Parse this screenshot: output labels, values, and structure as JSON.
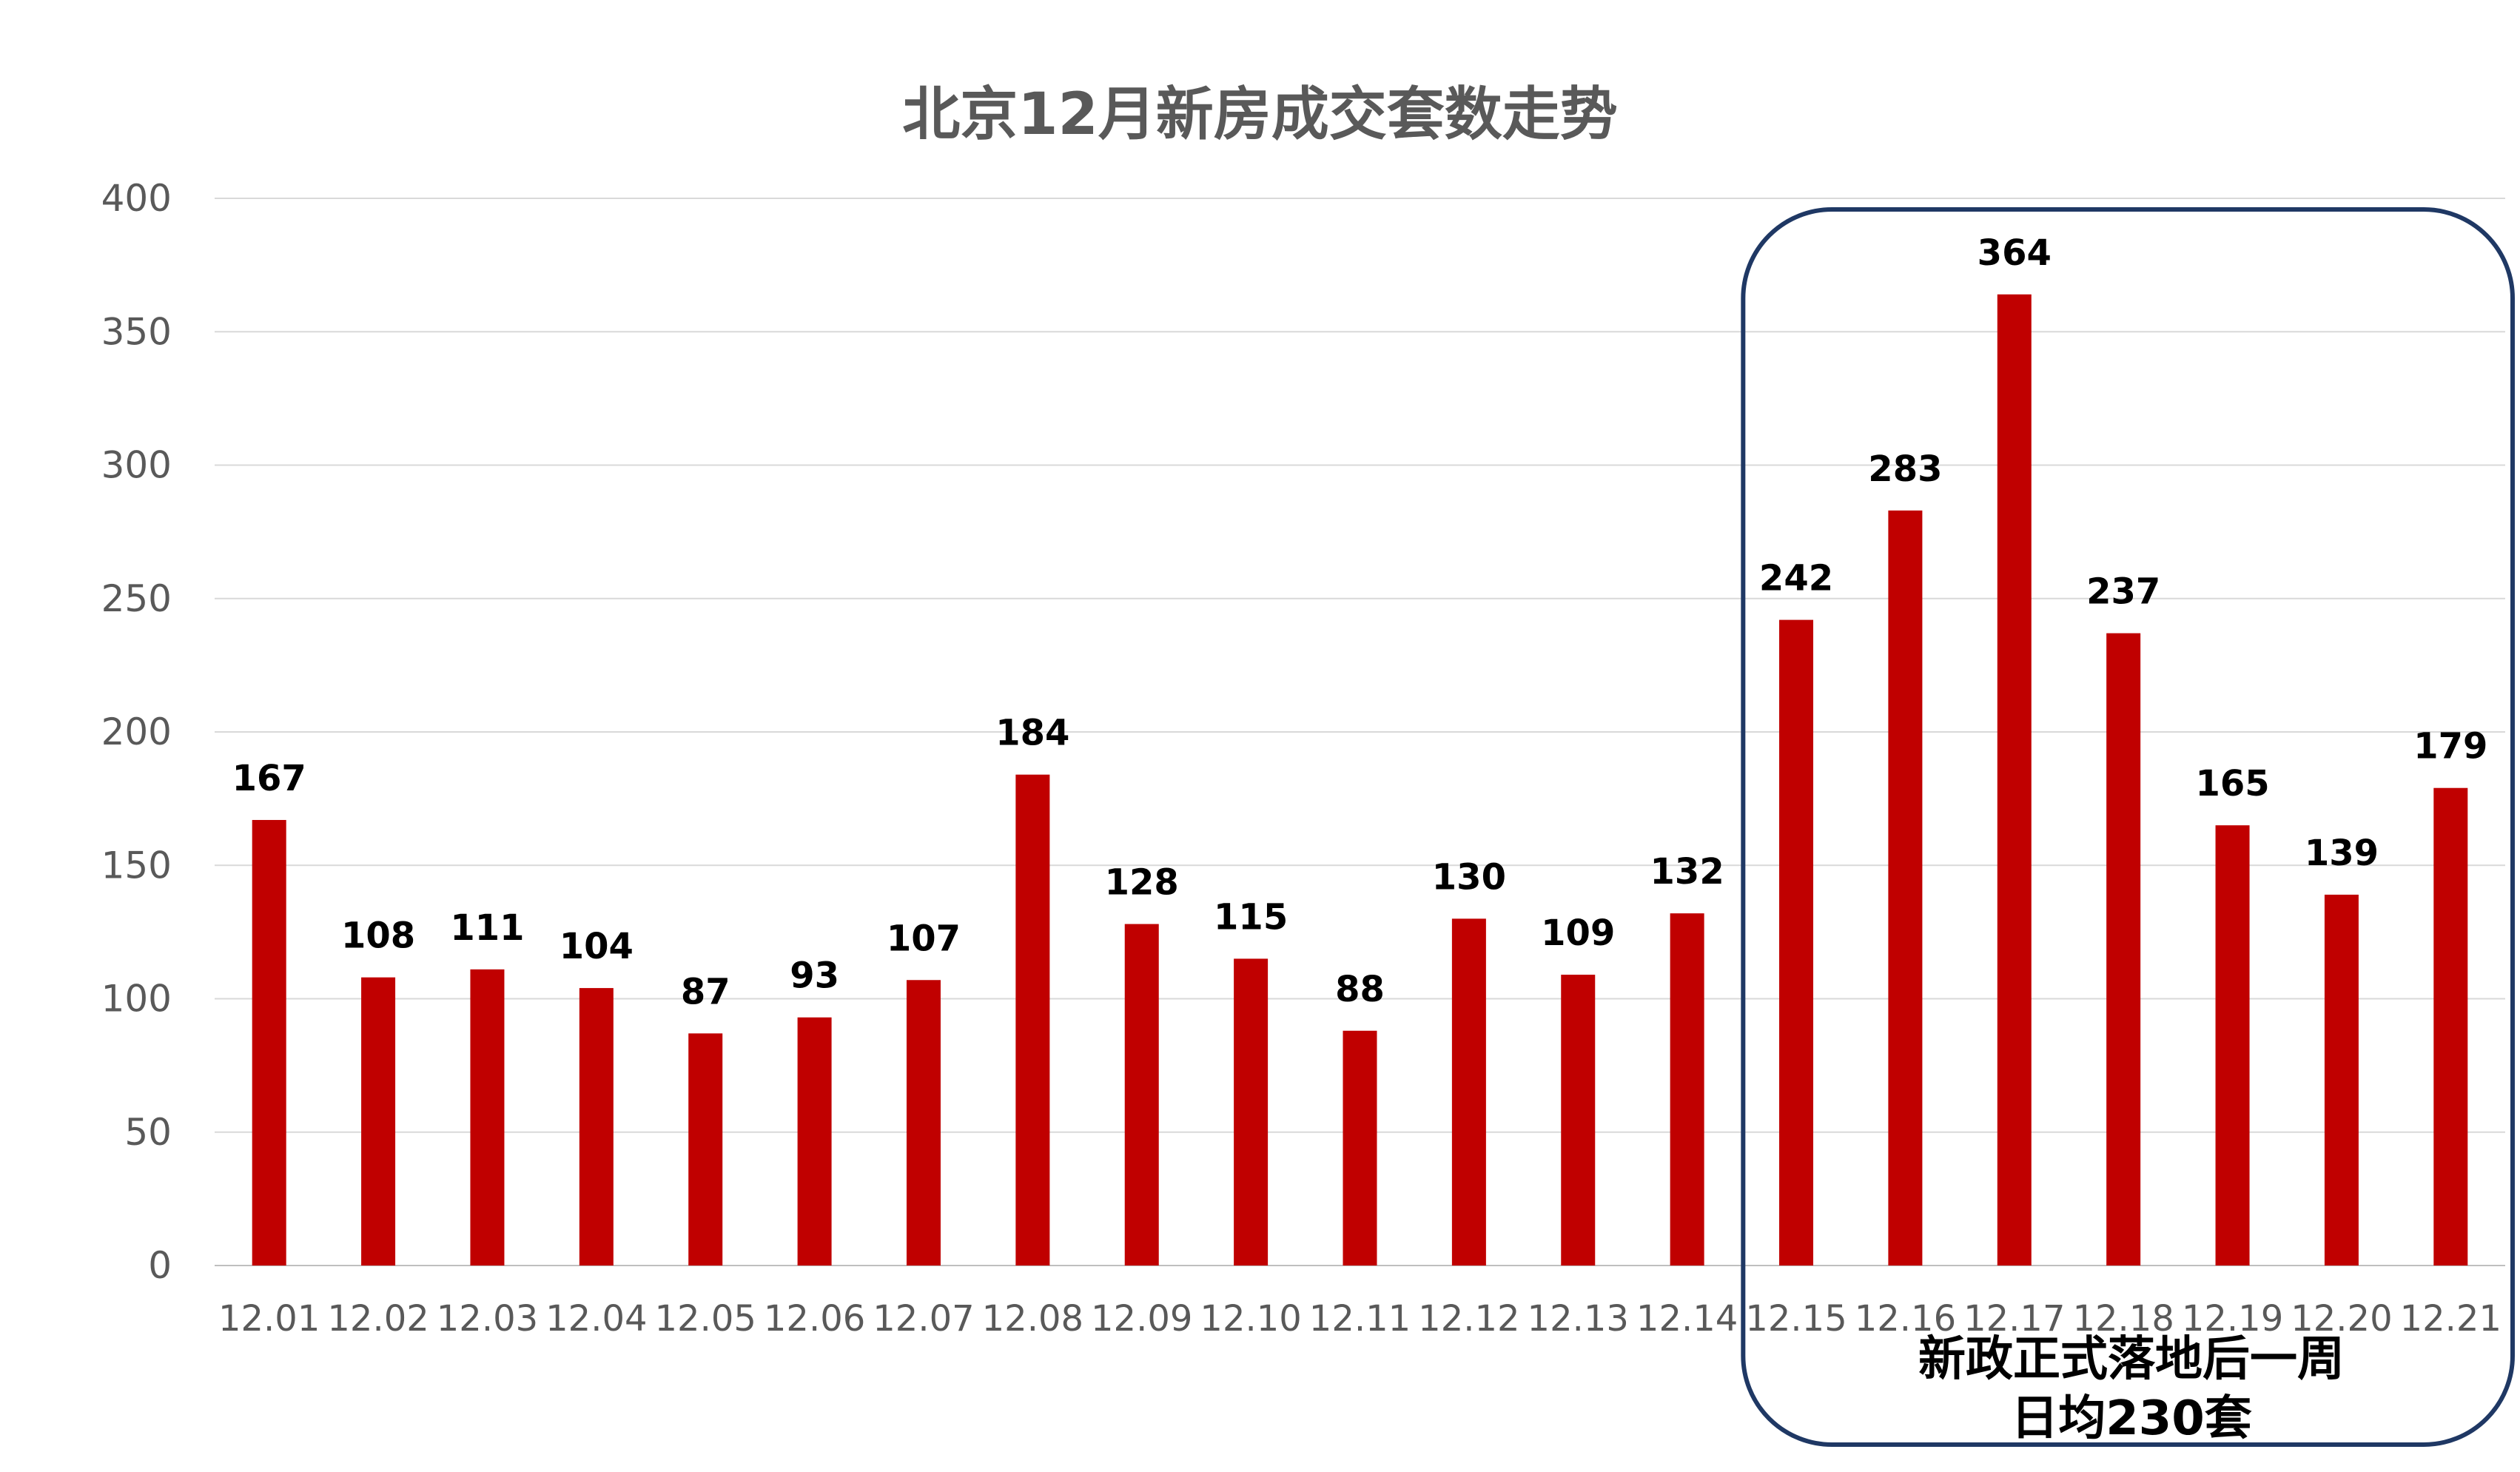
{
  "chart_data": {
    "type": "bar",
    "title": "北京12月新房成交套数走势",
    "categories": [
      "12.01",
      "12.02",
      "12.03",
      "12.04",
      "12.05",
      "12.06",
      "12.07",
      "12.08",
      "12.09",
      "12.10",
      "12.11",
      "12.12",
      "12.13",
      "12.14",
      "12.15",
      "12.16",
      "12.17",
      "12.18",
      "12.19",
      "12.20",
      "12.21"
    ],
    "values": [
      167,
      108,
      111,
      104,
      87,
      93,
      107,
      184,
      128,
      115,
      88,
      130,
      109,
      132,
      242,
      283,
      364,
      237,
      165,
      139,
      179
    ],
    "ylim": [
      0,
      400
    ],
    "yticks": [
      0,
      50,
      100,
      150,
      200,
      250,
      300,
      350,
      400
    ],
    "grid": true,
    "legend": "none",
    "bar_color": "#C00000",
    "highlight_range": [
      "12.15",
      "12.21"
    ],
    "highlight_border_color": "#1F3864",
    "annotation": {
      "line1": "新政正式落地后一周",
      "line2": "日均230套"
    }
  }
}
